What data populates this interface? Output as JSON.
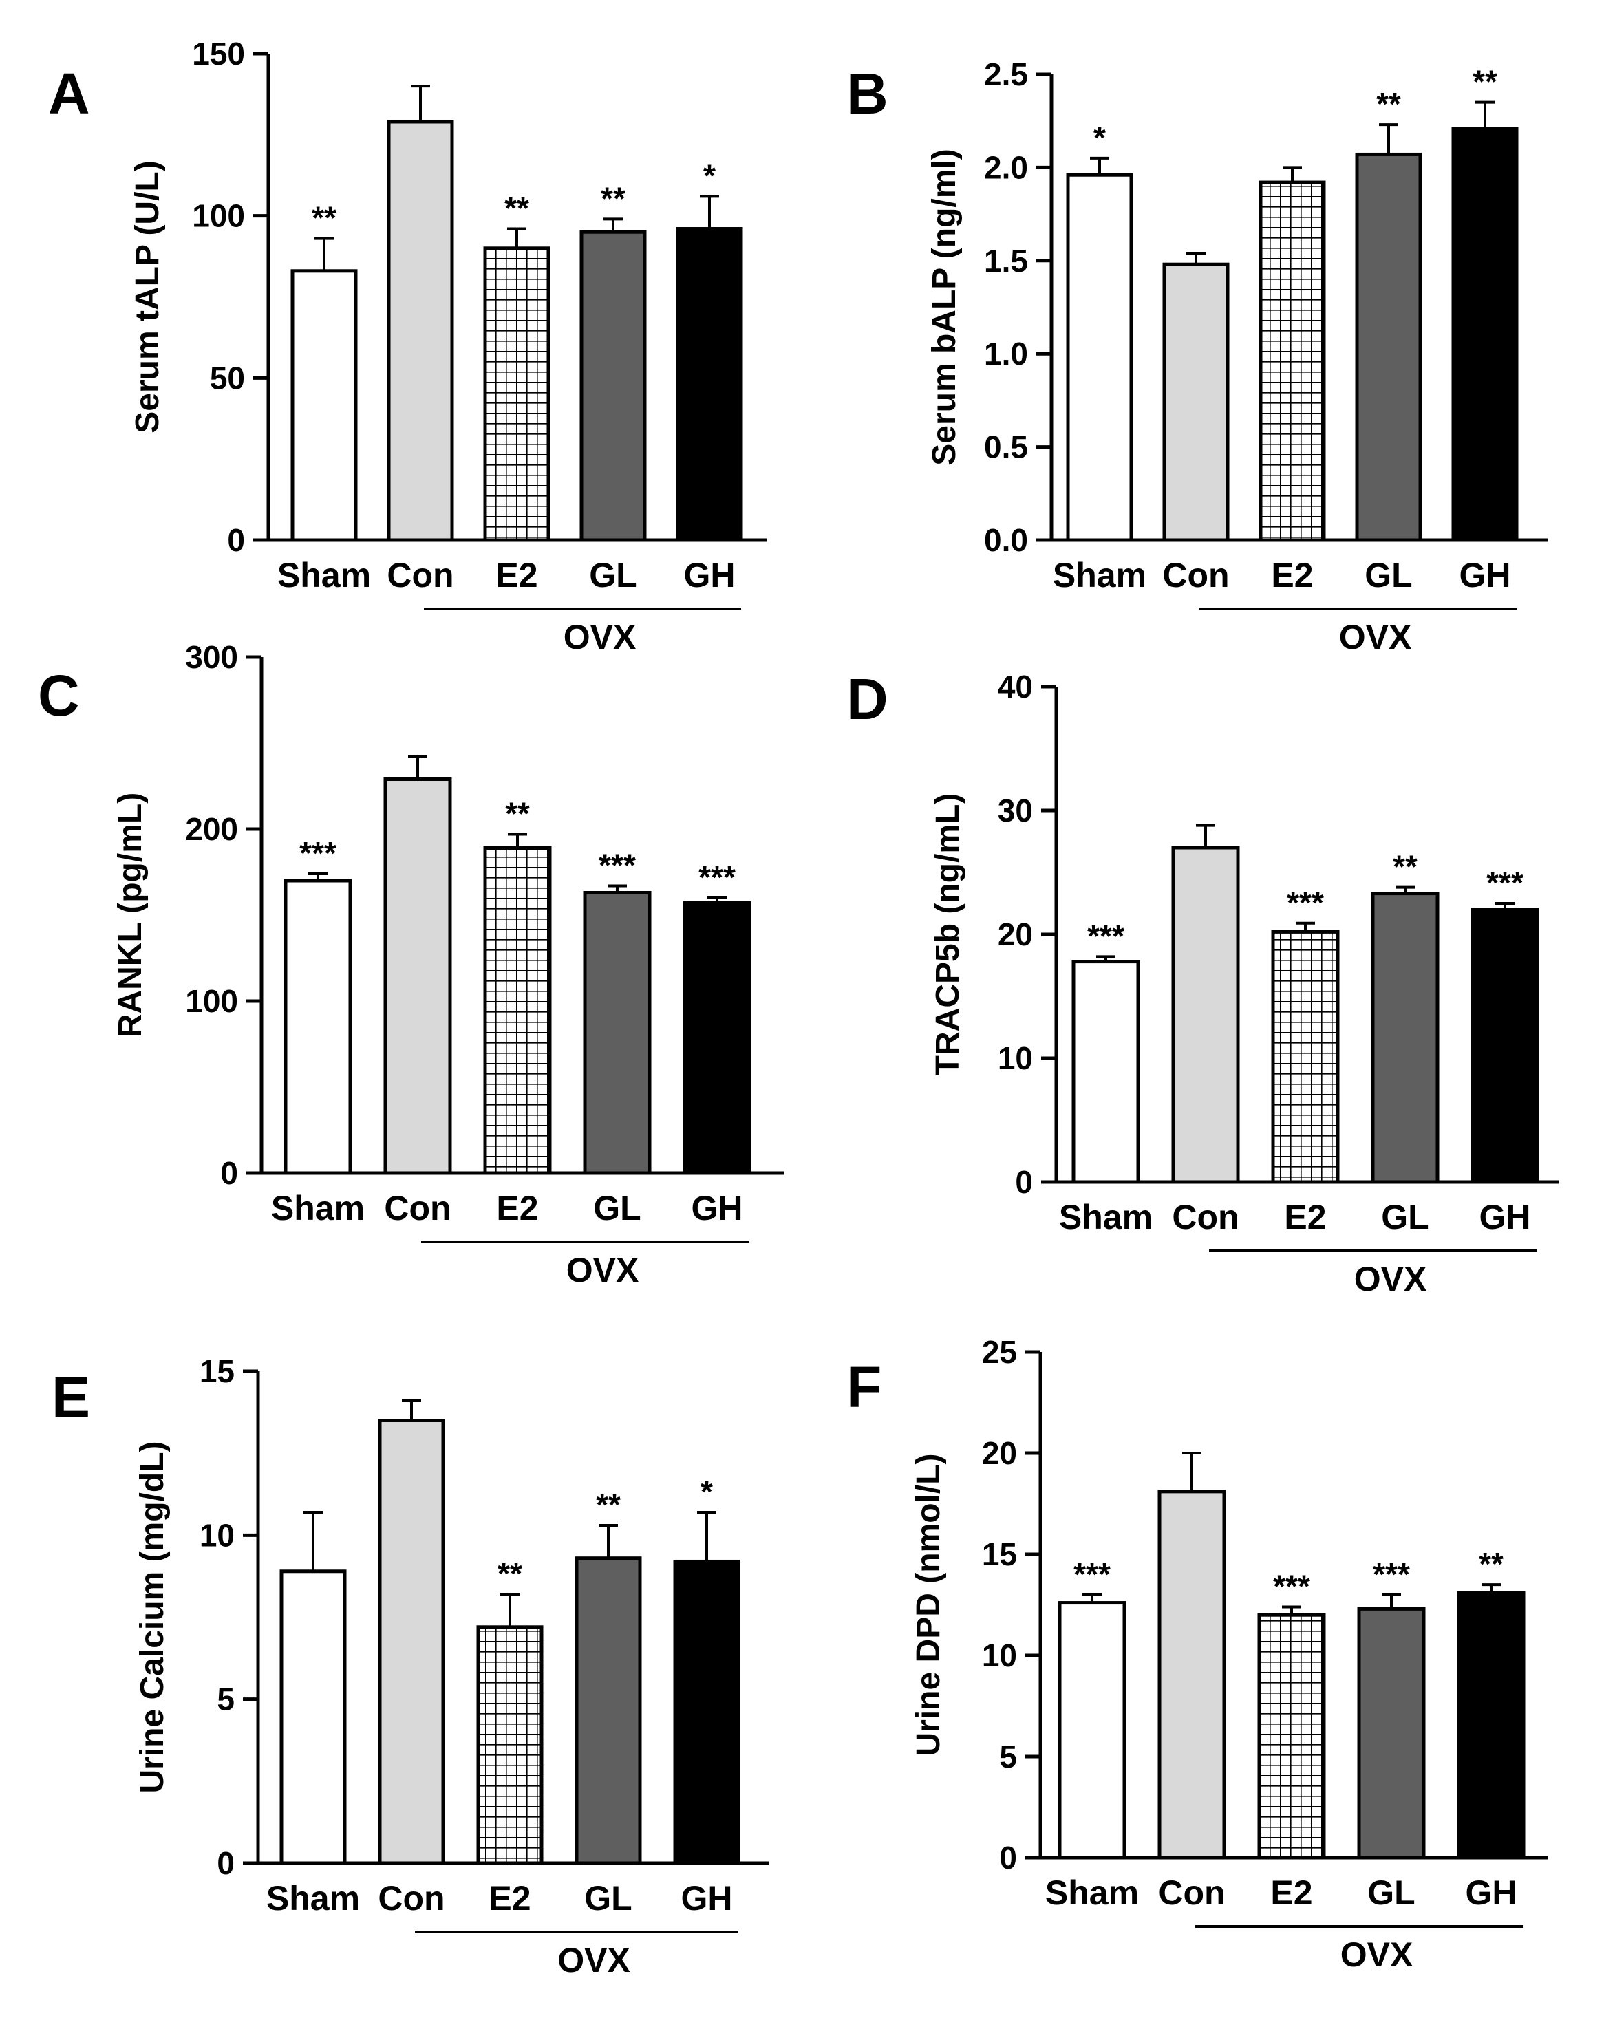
{
  "chart_data": [
    {
      "panel": "A",
      "type": "bar",
      "categories": [
        "Sham",
        "Con",
        "E2",
        "GL",
        "GH"
      ],
      "group_label": "OVX",
      "ylabel": "Serum tALP (U/L)",
      "ylim": [
        0,
        150
      ],
      "yticks": [
        0,
        50,
        100,
        150
      ],
      "tick_decimals": 0,
      "values": [
        83,
        129,
        90,
        95,
        96
      ],
      "errors": [
        10,
        11,
        6,
        4,
        10
      ],
      "significance": [
        "**",
        "",
        "**",
        "**",
        "*"
      ],
      "fills": [
        "white",
        "light-gray",
        "crosshatch",
        "dark-gray",
        "black"
      ]
    },
    {
      "panel": "B",
      "type": "bar",
      "categories": [
        "Sham",
        "Con",
        "E2",
        "GL",
        "GH"
      ],
      "group_label": "OVX",
      "ylabel": "Serum bALP (ng/ml)",
      "ylim": [
        0,
        2.5
      ],
      "yticks": [
        0.0,
        0.5,
        1.0,
        1.5,
        2.0,
        2.5
      ],
      "tick_decimals": 1,
      "values": [
        1.96,
        1.48,
        1.92,
        2.07,
        2.21
      ],
      "errors": [
        0.09,
        0.06,
        0.08,
        0.16,
        0.14
      ],
      "significance": [
        "*",
        "",
        "",
        "**",
        "**"
      ],
      "fills": [
        "white",
        "light-gray",
        "crosshatch",
        "dark-gray",
        "black"
      ]
    },
    {
      "panel": "C",
      "type": "bar",
      "categories": [
        "Sham",
        "Con",
        "E2",
        "GL",
        "GH"
      ],
      "group_label": "OVX",
      "ylabel": "RANKL (pg/mL)",
      "ylim": [
        0,
        300
      ],
      "yticks": [
        0,
        100,
        200,
        300
      ],
      "tick_decimals": 0,
      "values": [
        170,
        229,
        189,
        163,
        157
      ],
      "errors": [
        4,
        13,
        8,
        4,
        3
      ],
      "significance": [
        "***",
        "",
        "**",
        "***",
        "***"
      ],
      "fills": [
        "white",
        "light-gray",
        "crosshatch",
        "dark-gray",
        "black"
      ]
    },
    {
      "panel": "D",
      "type": "bar",
      "categories": [
        "Sham",
        "Con",
        "E2",
        "GL",
        "GH"
      ],
      "group_label": "OVX",
      "ylabel": "TRACP5b (ng/mL)",
      "ylim": [
        0,
        40
      ],
      "yticks": [
        0,
        10,
        20,
        30,
        40
      ],
      "tick_decimals": 0,
      "values": [
        17.8,
        27,
        20.2,
        23.3,
        22
      ],
      "errors": [
        0.4,
        1.8,
        0.7,
        0.5,
        0.5
      ],
      "significance": [
        "***",
        "",
        "***",
        "**",
        "***"
      ],
      "fills": [
        "white",
        "light-gray",
        "crosshatch",
        "dark-gray",
        "black"
      ]
    },
    {
      "panel": "E",
      "type": "bar",
      "categories": [
        "Sham",
        "Con",
        "E2",
        "GL",
        "GH"
      ],
      "group_label": "OVX",
      "ylabel": "Urine Calcium (mg/dL)",
      "ylim": [
        0,
        15
      ],
      "yticks": [
        0,
        5,
        10,
        15
      ],
      "tick_decimals": 0,
      "values": [
        8.9,
        13.5,
        7.2,
        9.3,
        9.2
      ],
      "errors": [
        1.8,
        0.6,
        1.0,
        1.0,
        1.5
      ],
      "significance": [
        "",
        "",
        "**",
        "**",
        "*"
      ],
      "fills": [
        "white",
        "light-gray",
        "crosshatch",
        "dark-gray",
        "black"
      ]
    },
    {
      "panel": "F",
      "type": "bar",
      "categories": [
        "Sham",
        "Con",
        "E2",
        "GL",
        "GH"
      ],
      "group_label": "OVX",
      "ylabel": "Urine DPD (nmol/L)",
      "ylim": [
        0,
        25
      ],
      "yticks": [
        0,
        5,
        10,
        15,
        20,
        25
      ],
      "tick_decimals": 0,
      "values": [
        12.6,
        18.1,
        12.0,
        12.3,
        13.1
      ],
      "errors": [
        0.4,
        1.9,
        0.4,
        0.7,
        0.4
      ],
      "significance": [
        "***",
        "",
        "***",
        "***",
        "**"
      ],
      "fills": [
        "white",
        "light-gray",
        "crosshatch",
        "dark-gray",
        "black"
      ]
    }
  ],
  "colors": {
    "white": "#ffffff",
    "light-gray": "#d9d9d9",
    "dark-gray": "#5f5f5f",
    "black": "#000000",
    "crosshatch": "#ffffff",
    "stroke": "#000000"
  }
}
